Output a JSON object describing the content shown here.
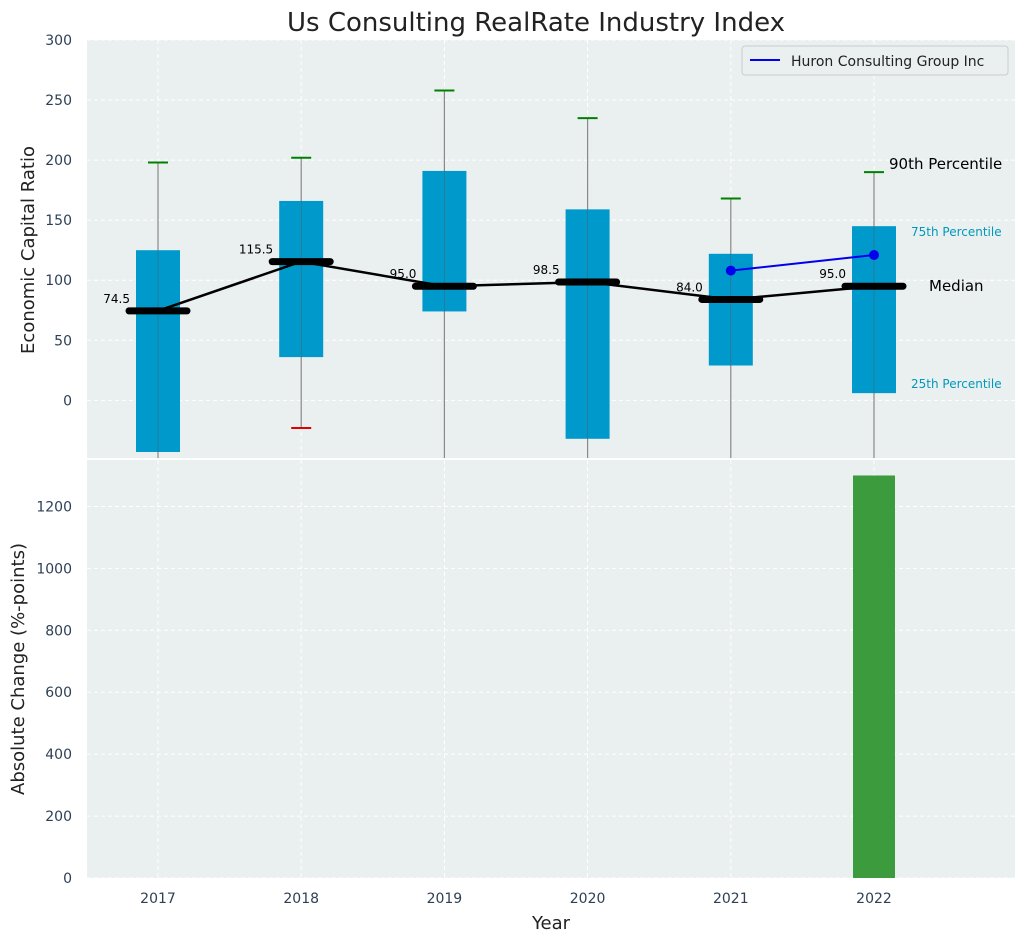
{
  "colors": {
    "panel_bg": "#eaeff0",
    "box_fill": "#0099cc",
    "median_line": "#000000",
    "company_line": "#0000ee",
    "whisker_top": "#008000",
    "whisker_bottom": "#e00000",
    "bar_fill": "#3c9b3c",
    "grid": "#ffffff",
    "tick_text": "#2e4057",
    "pct_label": "#0099bb"
  },
  "chart_data": [
    {
      "type": "box",
      "title": "Us Consulting RealRate Industry Index",
      "xlabel": "",
      "ylabel": "Economic Capital Ratio",
      "ylim": [
        -48,
        300
      ],
      "yticks": [
        0,
        50,
        100,
        150,
        200,
        250,
        300
      ],
      "categories": [
        "2017",
        "2018",
        "2019",
        "2020",
        "2021",
        "2022"
      ],
      "grid": true,
      "legend": {
        "placement": "top-right",
        "entries": [
          "Huron Consulting Group Inc"
        ]
      },
      "boxes": [
        {
          "year": "2017",
          "p10": -65,
          "p25": -43,
          "median": 74.5,
          "p75": 125,
          "p90": 198,
          "median_label": "74.5"
        },
        {
          "year": "2018",
          "p10": -23,
          "p25": 36,
          "median": 115.5,
          "p75": 166,
          "p90": 202,
          "median_label": "115.5"
        },
        {
          "year": "2019",
          "p10": -70,
          "p25": 74,
          "median": 95.0,
          "p75": 191,
          "p90": 258,
          "median_label": "95.0"
        },
        {
          "year": "2020",
          "p10": -70,
          "p25": -32,
          "median": 98.5,
          "p75": 159,
          "p90": 235,
          "median_label": "98.5"
        },
        {
          "year": "2021",
          "p10": -70,
          "p25": 29,
          "median": 84.0,
          "p75": 122,
          "p90": 168,
          "median_label": "84.0"
        },
        {
          "year": "2022",
          "p10": -70,
          "p25": 6,
          "median": 95.0,
          "p75": 145,
          "p90": 190,
          "median_label": "95.0"
        }
      ],
      "series": [
        {
          "name": "Huron Consulting Group Inc",
          "x": [
            "2021",
            "2022"
          ],
          "values": [
            108,
            121
          ]
        }
      ],
      "annotations": {
        "p90": "90th Percentile",
        "p75": "75th Percentile",
        "median": "Median",
        "p25": "25th Percentile"
      }
    },
    {
      "type": "bar",
      "xlabel": "Year",
      "ylabel": "Absolute Change (%-points)",
      "ylim": [
        0,
        1350
      ],
      "yticks": [
        0,
        200,
        400,
        600,
        800,
        1000,
        1200
      ],
      "categories": [
        "2017",
        "2018",
        "2019",
        "2020",
        "2021",
        "2022"
      ],
      "values": [
        0,
        0,
        0,
        0,
        0,
        1300
      ],
      "grid": true
    }
  ]
}
